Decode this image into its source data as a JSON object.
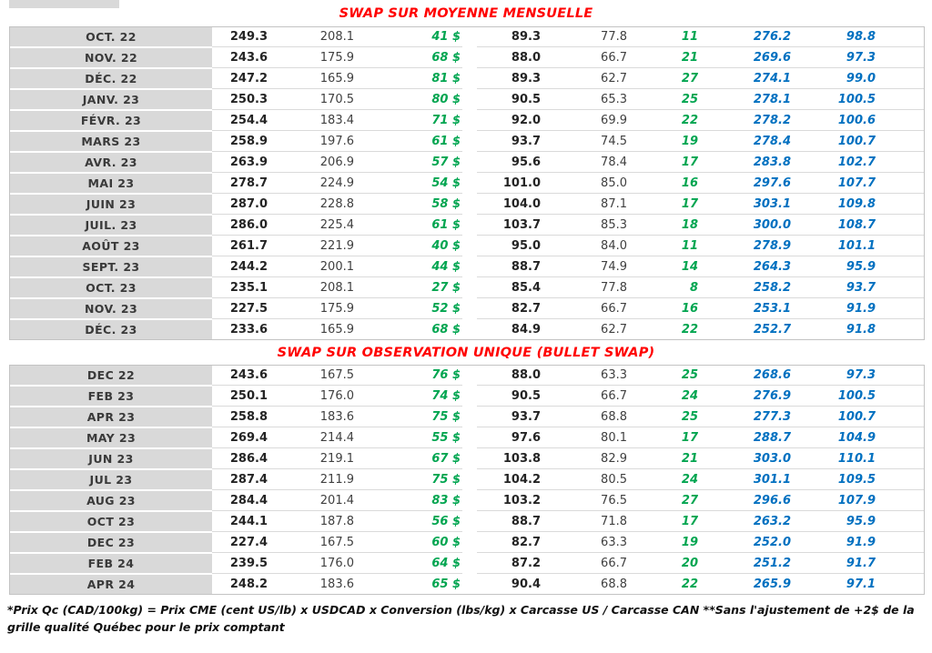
{
  "colors": {
    "title-red": "#FF0000",
    "gain-green": "#00A550",
    "price-blue": "#0070C0",
    "month-gray": "#D9D9D9"
  },
  "page": {
    "footnote": "*Prix Qc (CAD/100kg) = Prix CME (cent US/lb) x USDCAD x Conversion (lbs/kg) x Carcasse US / Carcasse CAN **Sans l'ajustement de +2$ de la grille qualité Québec pour le prix comptant"
  },
  "tables": [
    {
      "title": "SWAP SUR MOYENNE MENSUELLE",
      "rows": [
        {
          "month": "OCT. 22",
          "values": [
            "249.3",
            "208.1",
            "41 $",
            "89.3",
            "77.8",
            "11",
            "276.2",
            "98.8"
          ]
        },
        {
          "month": "NOV. 22",
          "values": [
            "243.6",
            "175.9",
            "68 $",
            "88.0",
            "66.7",
            "21",
            "269.6",
            "97.3"
          ]
        },
        {
          "month": "DÉC. 22",
          "values": [
            "247.2",
            "165.9",
            "81 $",
            "89.3",
            "62.7",
            "27",
            "274.1",
            "99.0"
          ]
        },
        {
          "month": "JANV. 23",
          "values": [
            "250.3",
            "170.5",
            "80 $",
            "90.5",
            "65.3",
            "25",
            "278.1",
            "100.5"
          ]
        },
        {
          "month": "FÉVR. 23",
          "values": [
            "254.4",
            "183.4",
            "71 $",
            "92.0",
            "69.9",
            "22",
            "278.2",
            "100.6"
          ]
        },
        {
          "month": "MARS 23",
          "values": [
            "258.9",
            "197.6",
            "61 $",
            "93.7",
            "74.5",
            "19",
            "278.4",
            "100.7"
          ]
        },
        {
          "month": "AVR. 23",
          "values": [
            "263.9",
            "206.9",
            "57 $",
            "95.6",
            "78.4",
            "17",
            "283.8",
            "102.7"
          ]
        },
        {
          "month": "MAI 23",
          "values": [
            "278.7",
            "224.9",
            "54 $",
            "101.0",
            "85.0",
            "16",
            "297.6",
            "107.7"
          ]
        },
        {
          "month": "JUIN 23",
          "values": [
            "287.0",
            "228.8",
            "58 $",
            "104.0",
            "87.1",
            "17",
            "303.1",
            "109.8"
          ]
        },
        {
          "month": "JUIL. 23",
          "values": [
            "286.0",
            "225.4",
            "61 $",
            "103.7",
            "85.3",
            "18",
            "300.0",
            "108.7"
          ]
        },
        {
          "month": "AOÛT 23",
          "values": [
            "261.7",
            "221.9",
            "40 $",
            "95.0",
            "84.0",
            "11",
            "278.9",
            "101.1"
          ]
        },
        {
          "month": "SEPT. 23",
          "values": [
            "244.2",
            "200.1",
            "44 $",
            "88.7",
            "74.9",
            "14",
            "264.3",
            "95.9"
          ]
        },
        {
          "month": "OCT. 23",
          "values": [
            "235.1",
            "208.1",
            "27 $",
            "85.4",
            "77.8",
            "8",
            "258.2",
            "93.7"
          ]
        },
        {
          "month": "NOV. 23",
          "values": [
            "227.5",
            "175.9",
            "52 $",
            "82.7",
            "66.7",
            "16",
            "253.1",
            "91.9"
          ]
        },
        {
          "month": "DÉC. 23",
          "values": [
            "233.6",
            "165.9",
            "68 $",
            "84.9",
            "62.7",
            "22",
            "252.7",
            "91.8"
          ]
        }
      ]
    },
    {
      "title": "SWAP SUR OBSERVATION UNIQUE (BULLET SWAP)",
      "rows": [
        {
          "month": "DEC 22",
          "values": [
            "243.6",
            "167.5",
            "76 $",
            "88.0",
            "63.3",
            "25",
            "268.6",
            "97.3"
          ]
        },
        {
          "month": "FEB 23",
          "values": [
            "250.1",
            "176.0",
            "74 $",
            "90.5",
            "66.7",
            "24",
            "276.9",
            "100.5"
          ]
        },
        {
          "month": "APR 23",
          "values": [
            "258.8",
            "183.6",
            "75 $",
            "93.7",
            "68.8",
            "25",
            "277.3",
            "100.7"
          ]
        },
        {
          "month": "MAY 23",
          "values": [
            "269.4",
            "214.4",
            "55 $",
            "97.6",
            "80.1",
            "17",
            "288.7",
            "104.9"
          ]
        },
        {
          "month": "JUN 23",
          "values": [
            "286.4",
            "219.1",
            "67 $",
            "103.8",
            "82.9",
            "21",
            "303.0",
            "110.1"
          ]
        },
        {
          "month": "JUL 23",
          "values": [
            "287.4",
            "211.9",
            "75 $",
            "104.2",
            "80.5",
            "24",
            "301.1",
            "109.5"
          ]
        },
        {
          "month": "AUG 23",
          "values": [
            "284.4",
            "201.4",
            "83 $",
            "103.2",
            "76.5",
            "27",
            "296.6",
            "107.9"
          ]
        },
        {
          "month": "OCT 23",
          "values": [
            "244.1",
            "187.8",
            "56 $",
            "88.7",
            "71.8",
            "17",
            "263.2",
            "95.9"
          ]
        },
        {
          "month": "DEC 23",
          "values": [
            "227.4",
            "167.5",
            "60 $",
            "82.7",
            "63.3",
            "19",
            "252.0",
            "91.9"
          ]
        },
        {
          "month": "FEB 24",
          "values": [
            "239.5",
            "176.0",
            "64 $",
            "87.2",
            "66.7",
            "20",
            "251.2",
            "91.7"
          ]
        },
        {
          "month": "APR 24",
          "values": [
            "248.2",
            "183.6",
            "65 $",
            "90.4",
            "68.8",
            "22",
            "265.9",
            "97.1"
          ]
        }
      ]
    }
  ]
}
